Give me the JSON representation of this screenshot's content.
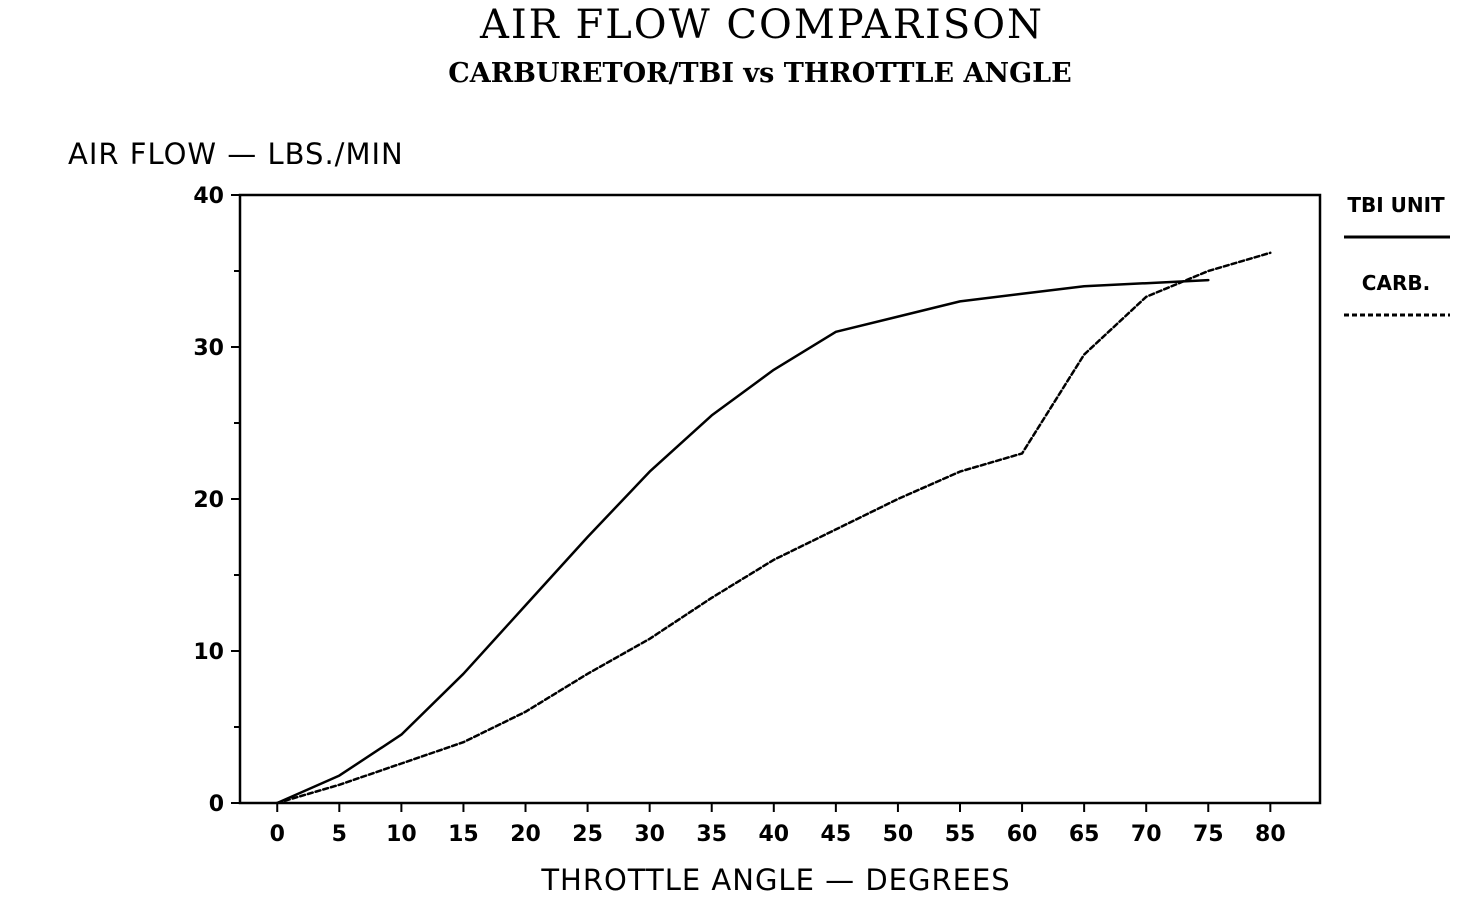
{
  "chart_data": {
    "type": "line",
    "title": "AIR FLOW COMPARISON",
    "subtitle": "CARBURETOR/TBI vs THROTTLE ANGLE",
    "xlabel": "THROTTLE ANGLE — DEGREES",
    "ylabel": "AIR FLOW — LBS./MIN",
    "xlim": [
      -3,
      84
    ],
    "ylim": [
      0,
      40
    ],
    "x_ticks": [
      "0",
      "5",
      "10",
      "15",
      "20",
      "25",
      "30",
      "35",
      "40",
      "45",
      "50",
      "55",
      "60",
      "65",
      "70",
      "75",
      "80"
    ],
    "y_ticks": [
      "0",
      "10",
      "20",
      "30",
      "40"
    ],
    "grid": false,
    "legend_position": "right",
    "series": [
      {
        "name": "TBI UNIT",
        "style": "solid",
        "color": "#000000",
        "points": [
          [
            0,
            0
          ],
          [
            5,
            1.8
          ],
          [
            10,
            4.5
          ],
          [
            15,
            8.5
          ],
          [
            20,
            13
          ],
          [
            25,
            17.5
          ],
          [
            30,
            21.8
          ],
          [
            35,
            25.5
          ],
          [
            40,
            28.5
          ],
          [
            45,
            31
          ],
          [
            50,
            32
          ],
          [
            55,
            33
          ],
          [
            60,
            33.5
          ],
          [
            65,
            34
          ],
          [
            70,
            34.2
          ],
          [
            75,
            34.4
          ]
        ]
      },
      {
        "name": "CARB.",
        "style": "dashed",
        "color": "#000000",
        "points": [
          [
            0,
            0
          ],
          [
            5,
            1.2
          ],
          [
            10,
            2.6
          ],
          [
            15,
            4
          ],
          [
            20,
            6
          ],
          [
            25,
            8.5
          ],
          [
            30,
            10.8
          ],
          [
            35,
            13.5
          ],
          [
            40,
            16
          ],
          [
            45,
            18
          ],
          [
            50,
            20
          ],
          [
            55,
            21.8
          ],
          [
            60,
            23
          ],
          [
            65,
            29.5
          ],
          [
            70,
            33.3
          ],
          [
            75,
            35
          ],
          [
            80,
            36.2
          ]
        ]
      }
    ]
  }
}
